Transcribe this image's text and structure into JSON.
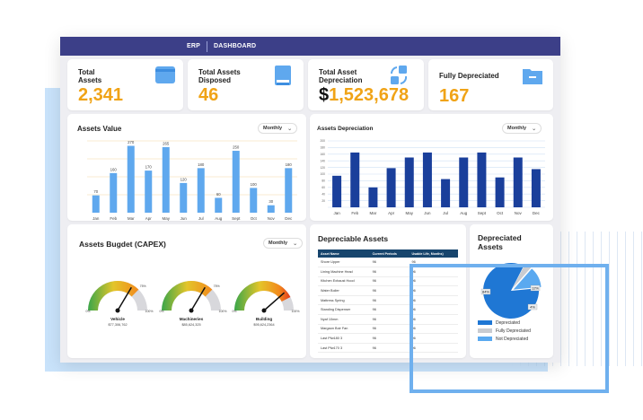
{
  "topbar": {
    "erp": "ERP",
    "dashboard": "DASHBOARD"
  },
  "kpis": [
    {
      "label": "Total Assets",
      "value": "2,341",
      "icon": "card-icon"
    },
    {
      "label": "Total Assets Disposed",
      "value": "46",
      "icon": "book-icon"
    },
    {
      "label": "Total Asset Depreciation",
      "value_prefix": "$",
      "value": "1,523,678",
      "icon": "transfer-icon"
    },
    {
      "label": "Fully Depreciated",
      "value": "167",
      "icon": "folder-icon"
    }
  ],
  "assets_value": {
    "title": "Assets Value",
    "period": "Monthly",
    "chart_data": {
      "type": "bar",
      "categories": [
        "Jan",
        "Feb",
        "Mar",
        "Apr",
        "May",
        "Jun",
        "Jul",
        "Aug",
        "Sept",
        "Oct",
        "Nov",
        "Dec"
      ],
      "values": [
        70,
        160,
        270,
        170,
        265,
        120,
        180,
        60,
        250,
        100,
        30,
        180
      ],
      "data_labels": [
        "70",
        "160",
        "270",
        "170",
        "265",
        "120",
        "180",
        "60",
        "250",
        "100",
        "30",
        "180"
      ],
      "ylim": [
        0,
        290
      ],
      "color": "#5fa8ee"
    }
  },
  "assets_depreciation": {
    "title": "Assets Depreciation",
    "period": "Monthly",
    "chart_data": {
      "type": "bar",
      "categories": [
        "Jan",
        "Feb",
        "Mar",
        "Apr",
        "May",
        "Jun",
        "Jul",
        "Aug",
        "Sept",
        "Oct",
        "Nov",
        "Dec"
      ],
      "values": [
        95,
        165,
        60,
        118,
        150,
        165,
        85,
        150,
        165,
        90,
        150,
        115
      ],
      "ticks": [
        "200",
        "180",
        "160",
        "140",
        "120",
        "100",
        "80",
        "60",
        "40",
        "20"
      ],
      "ylim": [
        0,
        200
      ],
      "color": "#1a3f9b"
    }
  },
  "budget": {
    "title": "Assets Bugdet (CAPEX)",
    "period": "Monthly",
    "gauges": [
      {
        "name": "Vehicle",
        "amount": "$77,306,762",
        "pct_label": "75%",
        "min": "0%",
        "max": "100%",
        "value": 0.75
      },
      {
        "name": "Machineries",
        "amount": "$85,624,325",
        "pct_label": "75%",
        "min": "0%",
        "max": "100%",
        "value": 0.75
      },
      {
        "name": "Building",
        "amount": "$95,624,2364",
        "pct_label": "",
        "min": "0%",
        "max": "100%",
        "value": 0.85
      }
    ]
  },
  "depreciable": {
    "title": "Depreciable Assets",
    "headers": [
      "Asset Name",
      "Current Periods",
      "Usable Life, Months)"
    ],
    "rows": [
      [
        "Shore Upper",
        "96",
        "96"
      ],
      [
        "Lining Machine Head",
        "96",
        "96"
      ],
      [
        "Kitchen Exhaust Hood",
        "96",
        "96"
      ],
      [
        "Water Boiler",
        "96",
        "96"
      ],
      [
        "Mattress Spring",
        "96",
        "96"
      ],
      [
        "Standing Dispenser",
        "96",
        "96"
      ],
      [
        "Nyaf 10mm",
        "96",
        "96"
      ],
      [
        "Margaon Boir Fan",
        "96",
        "96"
      ],
      [
        "Last Pfw180 3",
        "96",
        "96"
      ],
      [
        "Last Pfw170 3",
        "96",
        "96"
      ]
    ]
  },
  "depreciated": {
    "title": "Depreciated Assets",
    "chart_data": {
      "type": "pie",
      "labels": [
        "Depreciated",
        "Fully Depreciated",
        "Not Depreciated"
      ],
      "values": [
        84,
        4,
        12
      ],
      "data_labels": [
        "84%",
        "4%",
        "12%"
      ],
      "colors": [
        "#1f77d4",
        "#c9ccd1",
        "#5aa9f0"
      ]
    }
  }
}
